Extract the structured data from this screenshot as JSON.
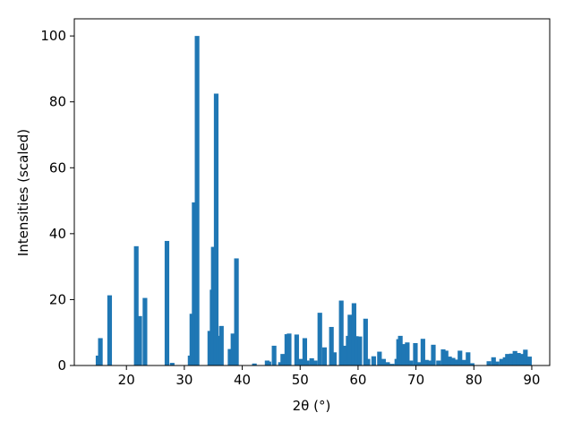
{
  "chart_data": {
    "type": "bar",
    "x_label": "2θ (°)",
    "y_label": "Intensities (scaled)",
    "color": "#1f77b4",
    "x": [
      15.1,
      15.5,
      17.1,
      21.7,
      22.3,
      23.2,
      27.0,
      27.9,
      31.0,
      31.3,
      31.7,
      32.2,
      34.4,
      34.8,
      35.0,
      35.5,
      35.9,
      36.4,
      37.9,
      38.4,
      39.0,
      42.1,
      44.3,
      44.6,
      45.5,
      46.6,
      47.0,
      47.7,
      48.1,
      49.4,
      50.1,
      50.8,
      51.2,
      52.0,
      52.6,
      53.4,
      54.2,
      55.4,
      55.9,
      57.1,
      57.6,
      57.9,
      58.3,
      58.6,
      59.3,
      59.7,
      60.3,
      61.3,
      61.7,
      62.7,
      63.7,
      64.4,
      65.1,
      65.9,
      66.7,
      67.0,
      67.3,
      67.9,
      68.5,
      69.1,
      69.9,
      70.5,
      71.2,
      71.8,
      72.4,
      73.0,
      73.9,
      74.7,
      75.2,
      75.8,
      76.4,
      77.0,
      77.6,
      78.3,
      79.0,
      79.7,
      82.6,
      83.4,
      84.0,
      84.8,
      85.4,
      85.8,
      86.5,
      87.1,
      87.7,
      88.3,
      88.9,
      89.6
    ],
    "values": [
      3,
      8.3,
      21.3,
      36.2,
      15,
      20.5,
      37.8,
      0.8,
      3,
      15.7,
      49.5,
      100,
      10.5,
      23,
      36,
      82.5,
      9,
      12,
      5,
      9.7,
      32.5,
      0.6,
      1.5,
      1.2,
      6,
      1,
      3.5,
      9.5,
      9.7,
      9.4,
      2,
      8.3,
      1.5,
      2.2,
      1.5,
      16,
      5.5,
      11.7,
      4,
      19.7,
      6,
      1.5,
      9,
      15.4,
      18.9,
      8.9,
      8.8,
      14.2,
      2,
      2.8,
      4.2,
      2,
      1,
      0.5,
      2,
      8,
      9,
      6.5,
      7,
      1.5,
      6.8,
      1,
      8.1,
      1.7,
      1.5,
      6.3,
      1.5,
      4.9,
      4.5,
      2.7,
      2.3,
      1.8,
      4.5,
      1.7,
      4,
      0.7,
      1.3,
      2.5,
      1.2,
      2,
      2.5,
      3.5,
      3.6,
      4.4,
      3.8,
      3.5,
      4.8,
      2.7
    ],
    "xlim": [
      11.0,
      93.1
    ],
    "ylim": [
      0,
      105.2
    ],
    "xticks": [
      20,
      30,
      40,
      50,
      60,
      70,
      80,
      90
    ],
    "yticks": [
      0,
      20,
      40,
      60,
      80,
      100
    ]
  }
}
